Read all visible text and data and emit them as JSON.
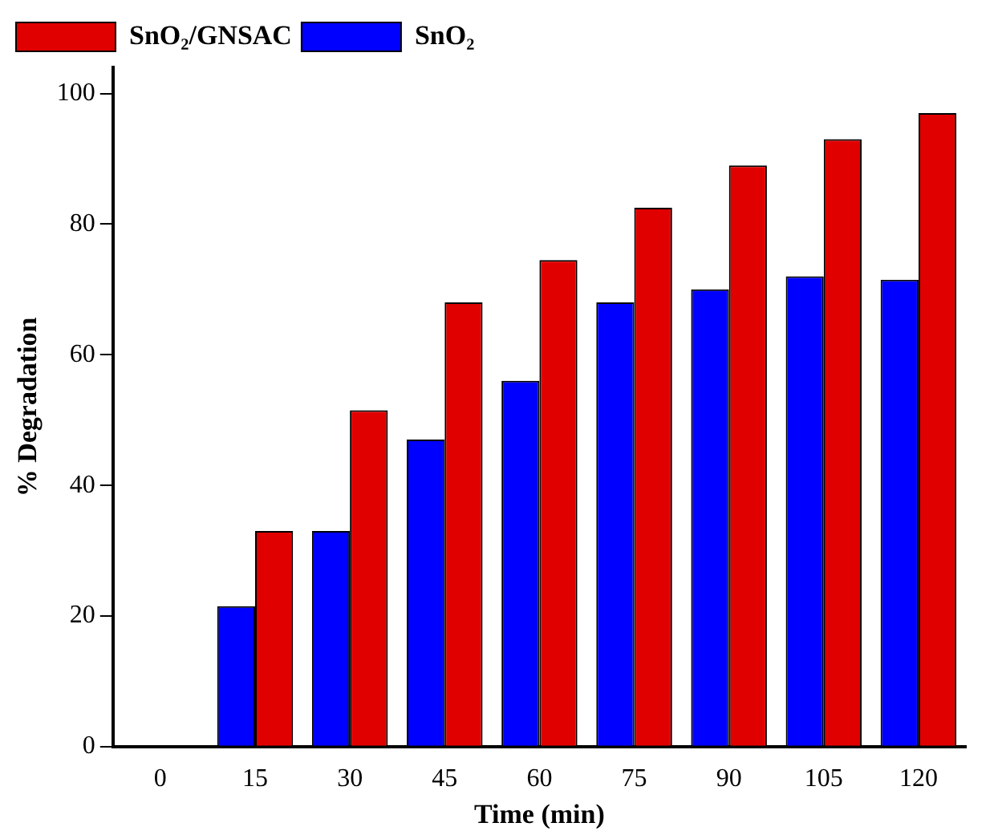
{
  "chart_data": {
    "type": "bar",
    "xlabel": "Time (min)",
    "ylabel": "% Degradation",
    "categories": [
      "0",
      "15",
      "30",
      "45",
      "60",
      "75",
      "90",
      "105",
      "120"
    ],
    "series": [
      {
        "name": "SnO₂",
        "color": "#0000ff",
        "values": [
          0,
          21.5,
          33,
          47,
          56,
          68,
          70,
          72,
          71.5
        ]
      },
      {
        "name": "SnO₂/GNSAC",
        "color": "#e00000",
        "values": [
          0,
          33,
          51.5,
          68,
          74.5,
          82.5,
          89,
          93,
          97
        ]
      }
    ],
    "ylim": [
      0,
      104
    ],
    "yticks": [
      0,
      20,
      40,
      60,
      80,
      100
    ],
    "grid": false,
    "legend": "top left"
  }
}
